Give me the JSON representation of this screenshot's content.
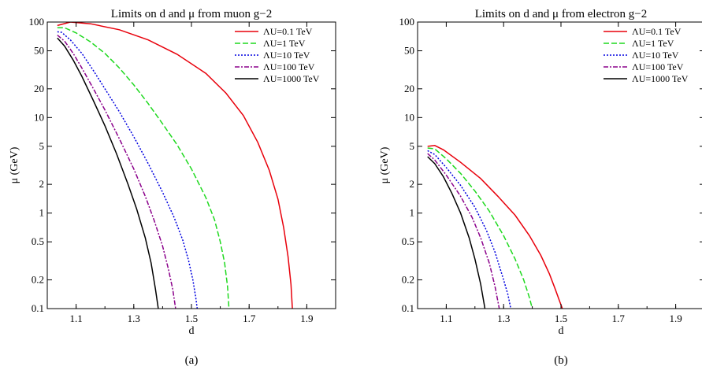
{
  "chart_data": [
    {
      "type": "line",
      "title": "Limits on d and μ from muon g−2",
      "panel_label": "(a)",
      "xlabel": "d",
      "ylabel": "μ (GeV)",
      "xlim": [
        1.0,
        2.0
      ],
      "ylim": [
        0.1,
        100
      ],
      "yscale": "log",
      "xticks": [
        1.1,
        1.3,
        1.5,
        1.7,
        1.9
      ],
      "xtick_labels": [
        "1.1",
        "1.3",
        "1.5",
        "1.7",
        "1.9"
      ],
      "yticks": [
        0.1,
        0.2,
        0.5,
        1,
        2,
        5,
        10,
        20,
        50,
        100
      ],
      "ytick_labels": [
        "0.1",
        "0.2",
        "0.5",
        "1",
        "2",
        "5",
        "10",
        "20",
        "50",
        "100"
      ],
      "grid": false,
      "legend_position": "top-right",
      "series": [
        {
          "name": "ΛU=0.1 TeV",
          "color": "#e8000b",
          "dash": "solid",
          "x": [
            1.035,
            1.08,
            1.15,
            1.25,
            1.35,
            1.45,
            1.55,
            1.62,
            1.68,
            1.73,
            1.77,
            1.8,
            1.82,
            1.835,
            1.845,
            1.85
          ],
          "y": [
            92,
            100,
            96,
            83,
            65,
            46,
            29,
            18,
            10.5,
            5.5,
            2.8,
            1.4,
            0.7,
            0.35,
            0.18,
            0.1
          ]
        },
        {
          "name": "ΛU=1 TeV",
          "color": "#1fd91f",
          "dash": "dashed",
          "x": [
            1.035,
            1.06,
            1.1,
            1.15,
            1.2,
            1.25,
            1.3,
            1.35,
            1.4,
            1.45,
            1.5,
            1.55,
            1.58,
            1.6,
            1.615,
            1.625,
            1.63
          ],
          "y": [
            87,
            87,
            77,
            62,
            47,
            33,
            22,
            14,
            8.6,
            5.2,
            2.9,
            1.45,
            0.85,
            0.5,
            0.3,
            0.17,
            0.1
          ]
        },
        {
          "name": "ΛU=10 TeV",
          "color": "#0000e0",
          "dash": "dotted",
          "x": [
            1.035,
            1.05,
            1.08,
            1.12,
            1.16,
            1.2,
            1.25,
            1.3,
            1.35,
            1.4,
            1.44,
            1.47,
            1.49,
            1.505,
            1.515,
            1.52
          ],
          "y": [
            79,
            78,
            65,
            47,
            31,
            20,
            11.5,
            6.3,
            3.3,
            1.65,
            0.9,
            0.52,
            0.32,
            0.2,
            0.13,
            0.1
          ]
        },
        {
          "name": "ΛU=100 TeV",
          "color": "#8b008b",
          "dash": "dashdot",
          "x": [
            1.035,
            1.06,
            1.09,
            1.12,
            1.16,
            1.2,
            1.25,
            1.3,
            1.34,
            1.37,
            1.4,
            1.42,
            1.435,
            1.445
          ],
          "y": [
            73,
            63,
            47,
            33,
            20,
            12,
            6,
            2.9,
            1.5,
            0.85,
            0.45,
            0.26,
            0.16,
            0.1
          ]
        },
        {
          "name": "ΛU=1000 TeV",
          "color": "#000000",
          "dash": "solid",
          "x": [
            1.035,
            1.06,
            1.09,
            1.12,
            1.16,
            1.2,
            1.24,
            1.28,
            1.31,
            1.34,
            1.36,
            1.375,
            1.385
          ],
          "y": [
            68,
            56,
            40,
            27,
            15,
            8.2,
            4.2,
            2.0,
            1.1,
            0.55,
            0.3,
            0.16,
            0.1
          ]
        }
      ]
    },
    {
      "type": "line",
      "title": "Limits on d and μ from electron g−2",
      "panel_label": "(b)",
      "xlabel": "d",
      "ylabel": "μ (GeV)",
      "xlim": [
        1.0,
        2.0
      ],
      "ylim": [
        0.1,
        100
      ],
      "yscale": "log",
      "xticks": [
        1.1,
        1.3,
        1.5,
        1.7,
        1.9
      ],
      "xtick_labels": [
        "1.1",
        "1.3",
        "1.5",
        "1.7",
        "1.9"
      ],
      "yticks": [
        0.1,
        0.2,
        0.5,
        1,
        2,
        5,
        10,
        20,
        50,
        100
      ],
      "ytick_labels": [
        "0.1",
        "0.2",
        "0.5",
        "1",
        "2",
        "5",
        "10",
        "20",
        "50",
        "100"
      ],
      "grid": false,
      "legend_position": "top-right",
      "series": [
        {
          "name": "ΛU=0.1 TeV",
          "color": "#e8000b",
          "dash": "solid",
          "x": [
            1.035,
            1.06,
            1.09,
            1.15,
            1.22,
            1.28,
            1.34,
            1.39,
            1.43,
            1.46,
            1.48,
            1.495,
            1.505
          ],
          "y": [
            5.0,
            5.1,
            4.6,
            3.4,
            2.3,
            1.5,
            0.95,
            0.58,
            0.36,
            0.23,
            0.16,
            0.12,
            0.1
          ]
        },
        {
          "name": "ΛU=1 TeV",
          "color": "#1fd91f",
          "dash": "dashed",
          "x": [
            1.035,
            1.06,
            1.1,
            1.15,
            1.2,
            1.25,
            1.3,
            1.34,
            1.37,
            1.39,
            1.4
          ],
          "y": [
            4.8,
            4.7,
            3.7,
            2.6,
            1.7,
            1.05,
            0.58,
            0.33,
            0.2,
            0.13,
            0.1
          ]
        },
        {
          "name": "ΛU=10 TeV",
          "color": "#0000e0",
          "dash": "dotted",
          "x": [
            1.035,
            1.06,
            1.1,
            1.15,
            1.2,
            1.24,
            1.27,
            1.3,
            1.315,
            1.325
          ],
          "y": [
            4.5,
            4.1,
            3.0,
            1.95,
            1.15,
            0.66,
            0.39,
            0.2,
            0.14,
            0.1
          ]
        },
        {
          "name": "ΛU=100 TeV",
          "color": "#8b008b",
          "dash": "dashdot",
          "x": [
            1.035,
            1.06,
            1.1,
            1.15,
            1.19,
            1.22,
            1.25,
            1.27,
            1.285
          ],
          "y": [
            4.2,
            3.6,
            2.5,
            1.5,
            0.9,
            0.55,
            0.3,
            0.17,
            0.1
          ]
        },
        {
          "name": "ΛU=1000 TeV",
          "color": "#000000",
          "dash": "solid",
          "x": [
            1.035,
            1.06,
            1.09,
            1.12,
            1.15,
            1.18,
            1.2,
            1.22,
            1.235
          ],
          "y": [
            3.9,
            3.3,
            2.4,
            1.6,
            1.0,
            0.55,
            0.33,
            0.18,
            0.1
          ]
        }
      ]
    }
  ]
}
